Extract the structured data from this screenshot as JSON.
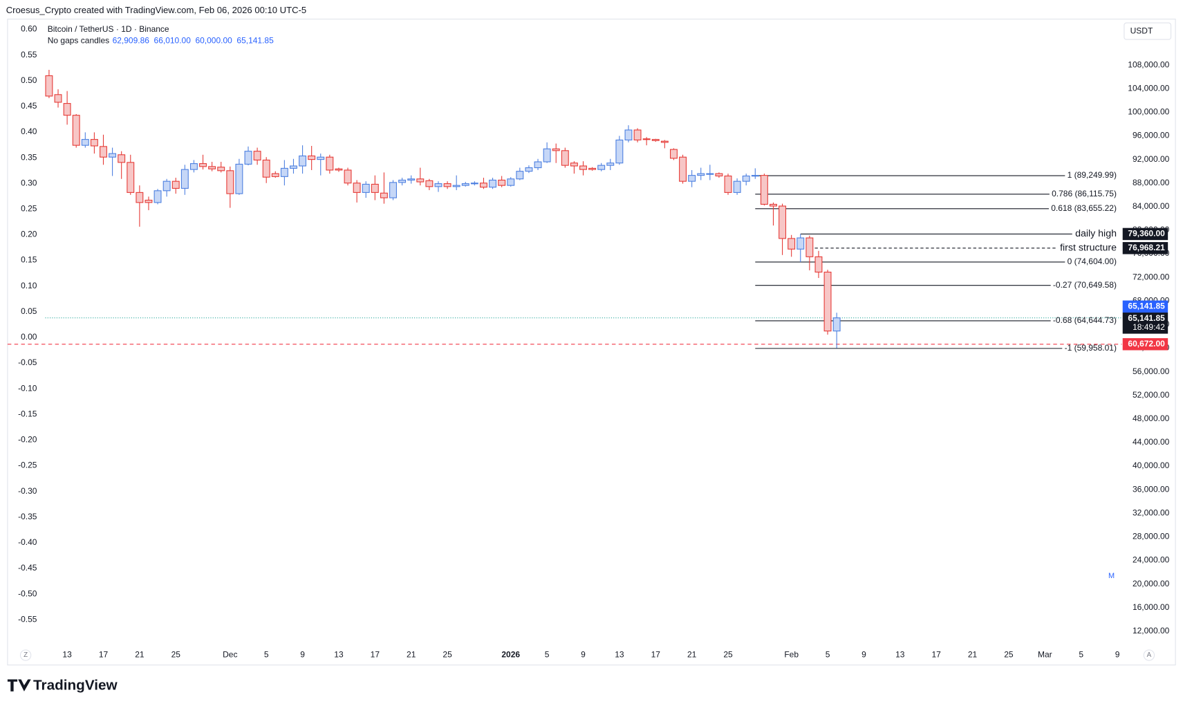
{
  "header": "Croesus_Crypto created with TradingView.com, Feb 06, 2026 00:10 UTC-5",
  "chart_data": {
    "type": "candlestick",
    "title": "Bitcoin / TetherUS · 1D · Binance",
    "subtitle": "No gaps candles",
    "ohlc_labels": [
      "62,909.86",
      "66,010.00",
      "60,000.00",
      "65,141.85"
    ],
    "currency": "USDT",
    "x": [
      "2025-11-11",
      "2025-11-12",
      "2025-11-13",
      "2025-11-14",
      "2025-11-15",
      "2025-11-16",
      "2025-11-17",
      "2025-11-18",
      "2025-11-19",
      "2025-11-20",
      "2025-11-21",
      "2025-11-22",
      "2025-11-23",
      "2025-11-24",
      "2025-11-25",
      "2025-11-26",
      "2025-11-27",
      "2025-11-28",
      "2025-11-29",
      "2025-11-30",
      "2025-12-01",
      "2025-12-02",
      "2025-12-03",
      "2025-12-04",
      "2025-12-05",
      "2025-12-06",
      "2025-12-07",
      "2025-12-08",
      "2025-12-09",
      "2025-12-10",
      "2025-12-11",
      "2025-12-12",
      "2025-12-13",
      "2025-12-14",
      "2025-12-15",
      "2025-12-16",
      "2025-12-17",
      "2025-12-18",
      "2025-12-19",
      "2025-12-20",
      "2025-12-21",
      "2025-12-22",
      "2025-12-23",
      "2025-12-24",
      "2025-12-25",
      "2025-12-26",
      "2025-12-27",
      "2025-12-28",
      "2025-12-29",
      "2025-12-30",
      "2025-12-31",
      "2026-01-01",
      "2026-01-02",
      "2026-01-03",
      "2026-01-04",
      "2026-01-05",
      "2026-01-06",
      "2026-01-07",
      "2026-01-08",
      "2026-01-09",
      "2026-01-10",
      "2026-01-11",
      "2026-01-12",
      "2026-01-13",
      "2026-01-14",
      "2026-01-15",
      "2026-01-16",
      "2026-01-17",
      "2026-01-18",
      "2026-01-19",
      "2026-01-20",
      "2026-01-21",
      "2026-01-22",
      "2026-01-23",
      "2026-01-24",
      "2026-01-25",
      "2026-01-26",
      "2026-01-27",
      "2026-01-28",
      "2026-01-29",
      "2026-01-30",
      "2026-01-31",
      "2026-02-01",
      "2026-02-02",
      "2026-02-03",
      "2026-02-04",
      "2026-02-05",
      "2026-02-06"
    ],
    "open": [
      106200,
      103000,
      101500,
      99500,
      94400,
      95400,
      94200,
      92400,
      92800,
      91500,
      86400,
      85100,
      84700,
      86700,
      88300,
      87100,
      90300,
      91300,
      90800,
      90700,
      90100,
      86200,
      91200,
      93400,
      91900,
      89600,
      89100,
      90500,
      90900,
      92600,
      92000,
      92400,
      90400,
      90200,
      88000,
      86400,
      87800,
      86300,
      85500,
      88100,
      88500,
      88700,
      88400,
      87400,
      87900,
      87400,
      87600,
      87900,
      88000,
      87300,
      88500,
      87600,
      88700,
      90000,
      90600,
      91600,
      93800,
      93500,
      91400,
      90900,
      90500,
      90300,
      91000,
      91400,
      95300,
      97000,
      95500,
      95400,
      95100,
      93700,
      92400,
      88300,
      89300,
      89500,
      89600,
      89200,
      86400,
      88300,
      89200,
      89300,
      84400,
      84100,
      78600,
      76800,
      78700,
      75500,
      72900,
      62909.86
    ],
    "high": [
      107200,
      103900,
      103600,
      99700,
      96600,
      96600,
      96200,
      94000,
      93400,
      92800,
      87600,
      85700,
      87000,
      88700,
      88900,
      91100,
      91900,
      92800,
      91600,
      91600,
      90800,
      92100,
      94200,
      94000,
      92400,
      90000,
      91900,
      92100,
      94400,
      94300,
      93000,
      92800,
      90600,
      90600,
      88500,
      88300,
      89300,
      89800,
      88500,
      88900,
      89300,
      90600,
      88700,
      88300,
      88300,
      89300,
      88200,
      88300,
      88900,
      88900,
      89200,
      89000,
      90600,
      91000,
      92100,
      94900,
      94700,
      94000,
      91700,
      91700,
      90700,
      91400,
      92100,
      96000,
      97800,
      97300,
      95800,
      95500,
      95300,
      93900,
      92800,
      90200,
      90600,
      91100,
      89800,
      89600,
      88800,
      89600,
      90500,
      89600,
      84700,
      84500,
      79200,
      79360,
      79100,
      76500,
      73300,
      66010
    ],
    "low": [
      102400,
      100800,
      97900,
      94000,
      94000,
      93000,
      91100,
      89200,
      88700,
      86000,
      80600,
      83400,
      84400,
      85700,
      86200,
      86000,
      89800,
      90300,
      90000,
      89800,
      83800,
      86000,
      91000,
      91100,
      88000,
      88900,
      87600,
      89600,
      89600,
      90200,
      89300,
      89600,
      89900,
      87600,
      84700,
      85500,
      85100,
      84500,
      85100,
      87600,
      87900,
      87600,
      86800,
      86500,
      87000,
      86800,
      87400,
      87600,
      87000,
      87000,
      87300,
      87400,
      88500,
      89700,
      90200,
      91400,
      91400,
      90600,
      89600,
      89300,
      90100,
      90000,
      90200,
      91100,
      94900,
      94900,
      94400,
      95000,
      93900,
      91900,
      87900,
      87300,
      88500,
      88500,
      88900,
      86000,
      86000,
      87600,
      88700,
      84200,
      80800,
      75800,
      75500,
      74600,
      73200,
      71900,
      62300,
      60000
    ],
    "close": [
      102750,
      101700,
      99500,
      94400,
      95400,
      94300,
      92400,
      93000,
      91500,
      86400,
      84700,
      84700,
      86700,
      88300,
      87100,
      90300,
      91300,
      90800,
      90400,
      90100,
      86200,
      91200,
      93400,
      91900,
      89000,
      89100,
      90500,
      90900,
      92600,
      92000,
      92400,
      90200,
      90200,
      88000,
      86400,
      87800,
      86400,
      85500,
      88100,
      88500,
      88700,
      88200,
      87400,
      87900,
      87400,
      87600,
      87900,
      88000,
      87300,
      88500,
      87600,
      88700,
      90000,
      90600,
      91600,
      93800,
      93500,
      91000,
      90900,
      90300,
      90300,
      91000,
      91400,
      95300,
      97000,
      95300,
      95400,
      95200,
      94900,
      92200,
      88300,
      89300,
      89600,
      89600,
      89200,
      86400,
      88300,
      89200,
      89300,
      84400,
      84100,
      78600,
      76800,
      78700,
      75500,
      72900,
      62909.86,
      65141.85
    ],
    "up_color": "#4c7fe0",
    "down_color": "#e53935",
    "up_fill": "#c6d7f7",
    "down_fill": "#f7c6c6",
    "xlim": [
      "2025-11-07",
      "2026-03-09"
    ],
    "xticks": [
      {
        "value": "2025-11-13",
        "label": "13"
      },
      {
        "value": "2025-11-17",
        "label": "17"
      },
      {
        "value": "2025-11-21",
        "label": "21"
      },
      {
        "value": "2025-11-25",
        "label": "25"
      },
      {
        "value": "2025-12-01",
        "label": "Dec"
      },
      {
        "value": "2025-12-05",
        "label": "5"
      },
      {
        "value": "2025-12-09",
        "label": "9"
      },
      {
        "value": "2025-12-13",
        "label": "13"
      },
      {
        "value": "2025-12-17",
        "label": "17"
      },
      {
        "value": "2025-12-21",
        "label": "21"
      },
      {
        "value": "2025-12-25",
        "label": "25"
      },
      {
        "value": "2026-01-01",
        "label": "2026",
        "bold": true
      },
      {
        "value": "2026-01-05",
        "label": "5"
      },
      {
        "value": "2026-01-09",
        "label": "9"
      },
      {
        "value": "2026-01-13",
        "label": "13"
      },
      {
        "value": "2026-01-17",
        "label": "17"
      },
      {
        "value": "2026-01-21",
        "label": "21"
      },
      {
        "value": "2026-01-25",
        "label": "25"
      },
      {
        "value": "2026-02-01",
        "label": "Feb"
      },
      {
        "value": "2026-02-05",
        "label": "5"
      },
      {
        "value": "2026-02-09",
        "label": "9"
      },
      {
        "value": "2026-02-13",
        "label": "13"
      },
      {
        "value": "2026-02-17",
        "label": "17"
      },
      {
        "value": "2026-02-21",
        "label": "21"
      },
      {
        "value": "2026-02-25",
        "label": "25"
      },
      {
        "value": "2026-03-01",
        "label": "Mar"
      },
      {
        "value": "2026-03-05",
        "label": "5"
      },
      {
        "value": "2026-03-09",
        "label": "9"
      }
    ],
    "ylim": [
      9600,
      115800
    ],
    "yticks": [
      {
        "value": 12000,
        "label": "12,000.00"
      },
      {
        "value": 16000,
        "label": "16,000.00"
      },
      {
        "value": 20000,
        "label": "20,000.00"
      },
      {
        "value": 24000,
        "label": "24,000.00"
      },
      {
        "value": 28000,
        "label": "28,000.00"
      },
      {
        "value": 32000,
        "label": "32,000.00"
      },
      {
        "value": 36000,
        "label": "36,000.00"
      },
      {
        "value": 40000,
        "label": "40,000.00"
      },
      {
        "value": 44000,
        "label": "44,000.00"
      },
      {
        "value": 48000,
        "label": "48,000.00"
      },
      {
        "value": 52000,
        "label": "52,000.00"
      },
      {
        "value": 56000,
        "label": "56,000.00"
      },
      {
        "value": 60000,
        "label": "60,000.00"
      },
      {
        "value": 64000,
        "label": "64,000.00"
      },
      {
        "value": 68000,
        "label": "68,000.00"
      },
      {
        "value": 72000,
        "label": "72,000.00"
      },
      {
        "value": 76000,
        "label": "76,000.00"
      },
      {
        "value": 80000,
        "label": "80,000.00"
      },
      {
        "value": 84000,
        "label": "84,000.00"
      },
      {
        "value": 88000,
        "label": "88,000.00"
      },
      {
        "value": 92000,
        "label": "92,000.00"
      },
      {
        "value": 96000,
        "label": "96,000.00"
      },
      {
        "value": 100000,
        "label": "100,000.00"
      },
      {
        "value": 104000,
        "label": "104,000.00"
      },
      {
        "value": 108000,
        "label": "108,000.00"
      }
    ],
    "y2lim": [
      -0.6,
      0.62
    ],
    "y2ticks": [
      {
        "value": 0.6,
        "label": "0.60"
      },
      {
        "value": 0.55,
        "label": "0.55"
      },
      {
        "value": 0.5,
        "label": "0.50"
      },
      {
        "value": 0.45,
        "label": "0.45"
      },
      {
        "value": 0.4,
        "label": "0.40"
      },
      {
        "value": 0.35,
        "label": "0.35"
      },
      {
        "value": 0.3,
        "label": "0.30"
      },
      {
        "value": 0.25,
        "label": "0.25"
      },
      {
        "value": 0.2,
        "label": "0.20"
      },
      {
        "value": 0.15,
        "label": "0.15"
      },
      {
        "value": 0.1,
        "label": "0.10"
      },
      {
        "value": 0.05,
        "label": "0.05"
      },
      {
        "value": 0,
        "label": "0.00"
      },
      {
        "value": -0.05,
        "label": "-0.05"
      },
      {
        "value": -0.1,
        "label": "-0.10"
      },
      {
        "value": -0.15,
        "label": "-0.15"
      },
      {
        "value": -0.2,
        "label": "-0.20"
      },
      {
        "value": -0.25,
        "label": "-0.25"
      },
      {
        "value": -0.3,
        "label": "-0.30"
      },
      {
        "value": -0.35,
        "label": "-0.35"
      },
      {
        "value": -0.4,
        "label": "-0.40"
      },
      {
        "value": -0.45,
        "label": "-0.45"
      },
      {
        "value": -0.5,
        "label": "-0.50"
      },
      {
        "value": -0.55,
        "label": "-0.55"
      }
    ],
    "grid": false,
    "fib": {
      "start": "2026-01-28",
      "levels": [
        {
          "label": "1 (89,249.99)",
          "value": 89249.99
        },
        {
          "label": "0.786 (86,115.75)",
          "value": 86115.75
        },
        {
          "label": "0.618 (83,655.22)",
          "value": 83655.22
        },
        {
          "label": "0 (74,604.00)",
          "value": 74604
        },
        {
          "label": "-0.27 (70,649.58)",
          "value": 70649.58
        },
        {
          "label": "-0.68 (64,644.73)",
          "value": 64644.73
        },
        {
          "label": "-1 (59,958.01)",
          "value": 59958.01
        }
      ]
    },
    "price_lines": [
      {
        "name": "daily high",
        "value": 79360,
        "label": "79,360.00",
        "start": "2026-02-02",
        "dash": false
      },
      {
        "name": "first structure",
        "value": 76968.21,
        "label": "76,968.21",
        "start": "2026-02-03",
        "dash": true
      }
    ],
    "current_price": {
      "value": 65141.85,
      "label": "65,141.85",
      "countdown": "18:49:42",
      "color": "#2962ff",
      "line_color": "#26a69a"
    },
    "alert": {
      "value": 60672,
      "label": "60,672.00",
      "color": "#f23645"
    },
    "marker": "M"
  },
  "footer": {
    "corner_left": "Z",
    "corner_right": "A",
    "logo": "TradingView"
  }
}
